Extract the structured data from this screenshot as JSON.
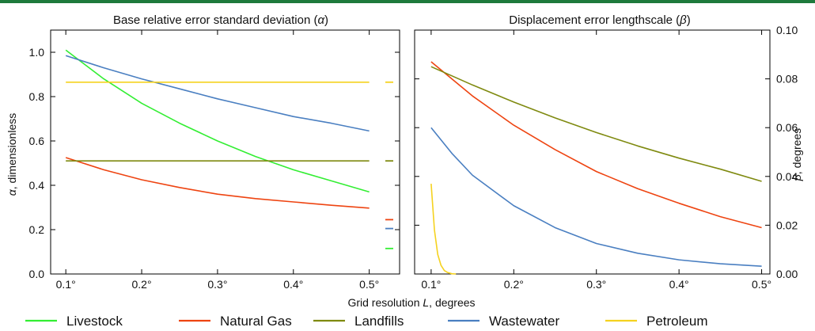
{
  "chart_data": [
    {
      "type": "line",
      "title": "Base relative error standard deviation (α)",
      "ylabel": "α, dimensionless",
      "xlabel": "Grid resolution L, degrees",
      "xlim": [
        0.08,
        0.54
      ],
      "ylim": [
        0.0,
        1.1
      ],
      "x_ticks": [
        0.1,
        0.2,
        0.3,
        0.4,
        0.5
      ],
      "x_tick_labels": [
        "0.1°",
        "0.2°",
        "0.3°",
        "0.4°",
        "0.5°"
      ],
      "y_ticks": [
        0.0,
        0.2,
        0.4,
        0.6,
        0.8,
        1.0
      ],
      "y_tick_labels": [
        "0.0",
        "0.2",
        "0.4",
        "0.6",
        "0.8",
        "1.0"
      ],
      "grid": false,
      "series": [
        {
          "name": "Livestock",
          "color": "#33ee33",
          "x": [
            0.1,
            0.15,
            0.2,
            0.25,
            0.3,
            0.35,
            0.4,
            0.45,
            0.5
          ],
          "y": [
            1.01,
            0.88,
            0.77,
            0.68,
            0.6,
            0.53,
            0.47,
            0.42,
            0.37
          ],
          "marker_value": 0.115
        },
        {
          "name": "Natural Gas",
          "color": "#ee4411",
          "x": [
            0.1,
            0.15,
            0.2,
            0.25,
            0.3,
            0.35,
            0.4,
            0.45,
            0.5
          ],
          "y": [
            0.525,
            0.47,
            0.425,
            0.39,
            0.36,
            0.34,
            0.325,
            0.31,
            0.297
          ],
          "marker_value": 0.245
        },
        {
          "name": "Landfills",
          "color": "#7f8a10",
          "x": [
            0.1,
            0.5
          ],
          "y": [
            0.51,
            0.51
          ],
          "marker_value": 0.51
        },
        {
          "name": "Wastewater",
          "color": "#4a7fc1",
          "x": [
            0.1,
            0.15,
            0.2,
            0.25,
            0.3,
            0.35,
            0.4,
            0.45,
            0.5
          ],
          "y": [
            0.985,
            0.93,
            0.88,
            0.835,
            0.79,
            0.75,
            0.71,
            0.68,
            0.645
          ],
          "marker_value": 0.205
        },
        {
          "name": "Petroleum",
          "color": "#f5d21f",
          "x": [
            0.1,
            0.5
          ],
          "y": [
            0.865,
            0.865
          ],
          "marker_value": 0.865
        }
      ]
    },
    {
      "type": "line",
      "title": "Displacement error lengthscale (β)",
      "ylabel": "β, degrees",
      "xlabel": "Grid resolution L, degrees",
      "xlim": [
        0.08,
        0.51
      ],
      "ylim": [
        0.0,
        0.1
      ],
      "y_axis_side": "right",
      "x_ticks": [
        0.1,
        0.2,
        0.3,
        0.4,
        0.5
      ],
      "x_tick_labels": [
        "0.1°",
        "0.2°",
        "0.3°",
        "0.4°",
        "0.5°"
      ],
      "y_ticks": [
        0.0,
        0.02,
        0.04,
        0.06,
        0.08,
        0.1
      ],
      "y_tick_labels": [
        "0.00",
        "0.02",
        "0.04",
        "0.06",
        "0.08",
        "0.10"
      ],
      "grid": false,
      "series": [
        {
          "name": "Livestock",
          "color": "#33ee33",
          "x": [],
          "y": []
        },
        {
          "name": "Natural Gas",
          "color": "#ee4411",
          "x": [
            0.1,
            0.15,
            0.2,
            0.25,
            0.3,
            0.35,
            0.4,
            0.45,
            0.5
          ],
          "y": [
            0.087,
            0.073,
            0.061,
            0.051,
            0.042,
            0.035,
            0.029,
            0.0235,
            0.019
          ]
        },
        {
          "name": "Landfills",
          "color": "#7f8a10",
          "x": [
            0.1,
            0.15,
            0.2,
            0.25,
            0.3,
            0.35,
            0.4,
            0.45,
            0.5
          ],
          "y": [
            0.085,
            0.0775,
            0.0705,
            0.064,
            0.058,
            0.0525,
            0.0475,
            0.043,
            0.038
          ]
        },
        {
          "name": "Wastewater",
          "color": "#4a7fc1",
          "x": [
            0.1,
            0.125,
            0.15,
            0.2,
            0.25,
            0.3,
            0.35,
            0.4,
            0.45,
            0.5
          ],
          "y": [
            0.06,
            0.0495,
            0.0405,
            0.028,
            0.019,
            0.0125,
            0.0085,
            0.0058,
            0.0042,
            0.0032
          ]
        },
        {
          "name": "Petroleum",
          "color": "#f5d21f",
          "x": [
            0.1,
            0.104,
            0.108,
            0.112,
            0.116,
            0.12,
            0.125,
            0.13
          ],
          "y": [
            0.037,
            0.018,
            0.008,
            0.0035,
            0.0014,
            0.0006,
            0.0001,
            0.0
          ]
        }
      ]
    }
  ],
  "axis_label_x": {
    "prefix": "Grid resolution ",
    "var": "L",
    "suffix": ", degrees"
  },
  "axis_label_left": {
    "var": "α",
    "suffix": ", dimensionless"
  },
  "axis_label_right": {
    "var": "β",
    "suffix": ", degrees"
  },
  "title_left": {
    "prefix": "Base relative error standard deviation (",
    "var": "α",
    "suffix": ")"
  },
  "title_right": {
    "prefix": "Displacement error lengthscale (",
    "var": "β",
    "suffix": ")"
  },
  "legend": {
    "placement": "bottom",
    "items": [
      {
        "label": "Livestock",
        "color": "#33ee33"
      },
      {
        "label": "Natural Gas",
        "color": "#ee4411"
      },
      {
        "label": "Landfills",
        "color": "#7f8a10"
      },
      {
        "label": "Wastewater",
        "color": "#4a7fc1"
      },
      {
        "label": "Petroleum",
        "color": "#f5d21f"
      }
    ]
  }
}
